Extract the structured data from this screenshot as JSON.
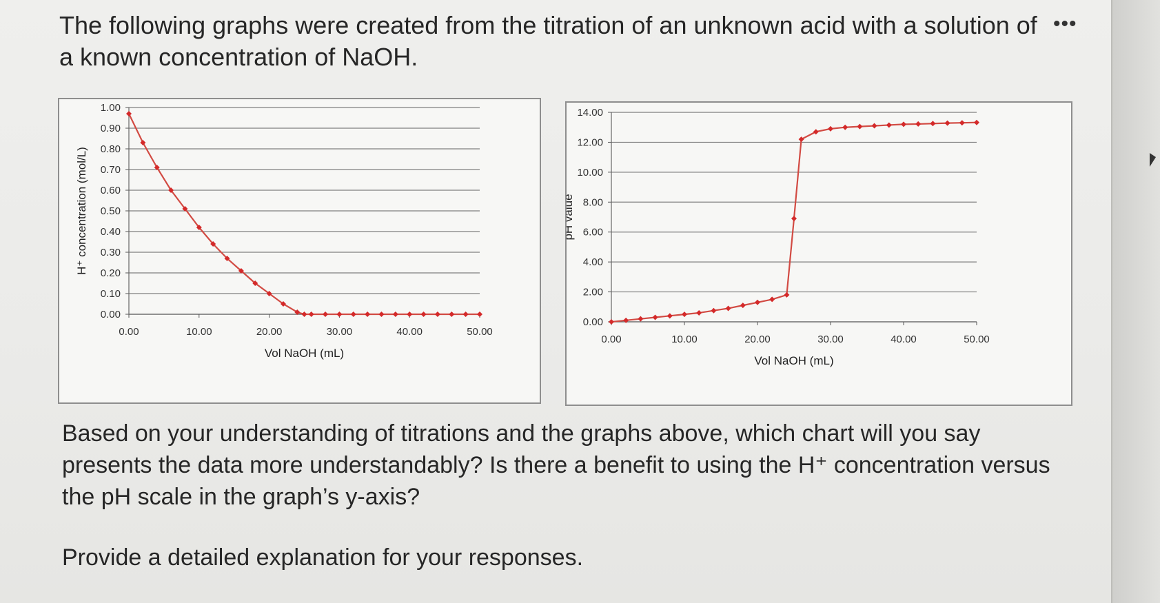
{
  "question": {
    "intro": "The following graphs were created from the titration of an unknown acid with a solution of a known concentration of NaOH.",
    "prompt": "Based on your understanding of titrations and the graphs above, which chart will you say presents the data more understandably? Is there a benefit to using the H⁺ concentration versus the pH scale in the graph’s y-axis?",
    "instruction": "Provide a detailed explanation for your responses."
  },
  "more_label": "•••",
  "colors": {
    "line": "#d24b43",
    "marker": "#d42a2a",
    "grid": "#7f7f7f"
  },
  "chart_data": [
    {
      "type": "line",
      "title": "",
      "xlabel": "Vol NaOH (mL)",
      "ylabel": "H⁺ concentration (mol/L)",
      "xlim": [
        0,
        50
      ],
      "ylim": [
        0,
        1
      ],
      "x_ticks": [
        "0.00",
        "10.00",
        "20.00",
        "30.00",
        "40.00",
        "50.00"
      ],
      "y_ticks": [
        "0.00",
        "0.10",
        "0.20",
        "0.30",
        "0.40",
        "0.50",
        "0.60",
        "0.70",
        "0.80",
        "0.90",
        "1.00"
      ],
      "grid": "horizontal",
      "x": [
        0,
        2,
        4,
        6,
        8,
        10,
        12,
        14,
        16,
        18,
        20,
        22,
        24,
        25,
        26,
        28,
        30,
        32,
        34,
        36,
        38,
        40,
        42,
        44,
        46,
        48,
        50
      ],
      "y": [
        0.97,
        0.83,
        0.71,
        0.6,
        0.51,
        0.42,
        0.34,
        0.27,
        0.21,
        0.15,
        0.1,
        0.05,
        0.01,
        0.0,
        0.0,
        0.0,
        0.0,
        0.0,
        0.0,
        0.0,
        0.0,
        0.0,
        0.0,
        0.0,
        0.0,
        0.0,
        0.0
      ]
    },
    {
      "type": "line",
      "title": "",
      "xlabel": "Vol NaOH (mL)",
      "ylabel": "pH value",
      "xlim": [
        0,
        50
      ],
      "ylim": [
        0,
        14
      ],
      "x_ticks": [
        "0.00",
        "10.00",
        "20.00",
        "30.00",
        "40.00",
        "50.00"
      ],
      "y_ticks": [
        "0.00",
        "2.00",
        "4.00",
        "6.00",
        "8.00",
        "10.00",
        "12.00",
        "14.00"
      ],
      "grid": "horizontal",
      "x": [
        0,
        2,
        4,
        6,
        8,
        10,
        12,
        14,
        16,
        18,
        20,
        22,
        24,
        25,
        26,
        28,
        30,
        32,
        34,
        36,
        38,
        40,
        42,
        44,
        46,
        48,
        50
      ],
      "y": [
        0.0,
        0.1,
        0.2,
        0.3,
        0.4,
        0.5,
        0.6,
        0.75,
        0.9,
        1.1,
        1.3,
        1.5,
        1.8,
        6.9,
        12.2,
        12.7,
        12.9,
        13.0,
        13.05,
        13.1,
        13.15,
        13.2,
        13.22,
        13.25,
        13.28,
        13.3,
        13.32
      ]
    }
  ]
}
